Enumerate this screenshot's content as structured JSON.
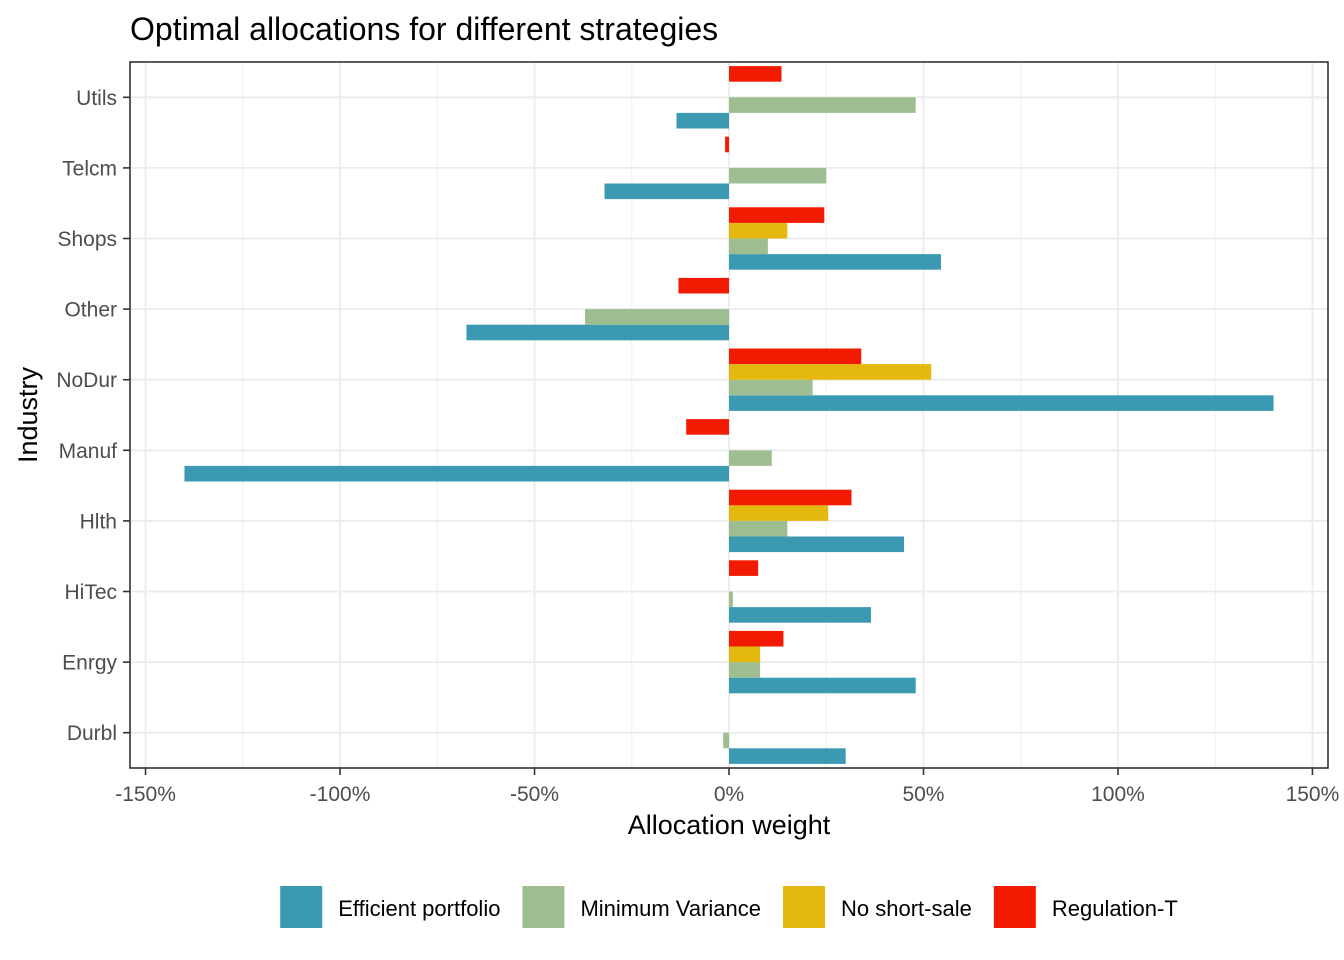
{
  "chart_data": {
    "type": "bar",
    "orientation": "horizontal",
    "title": "Optimal allocations for different strategies",
    "xlabel": "Allocation weight",
    "ylabel": "Industry",
    "xlim": [
      -1.54,
      1.54
    ],
    "xticks": [
      -1.5,
      -1.0,
      -0.5,
      0,
      0.5,
      1.0,
      1.5
    ],
    "xtick_labels": [
      "-150%",
      "-100%",
      "-50%",
      "0%",
      "50%",
      "100%",
      "150%"
    ],
    "categories": [
      "Durbl",
      "Enrgy",
      "HiTec",
      "Hlth",
      "Manuf",
      "NoDur",
      "Other",
      "Shops",
      "Telcm",
      "Utils"
    ],
    "series": [
      {
        "name": "Efficient portfolio",
        "color": "#3B9AB2",
        "values": [
          0.3,
          0.48,
          0.365,
          0.45,
          -1.4,
          1.4,
          -0.675,
          0.545,
          -0.32,
          -0.135
        ]
      },
      {
        "name": "Minimum Variance",
        "color": "#9EBE91",
        "values": [
          -0.015,
          0.08,
          0.01,
          0.15,
          0.11,
          0.215,
          -0.37,
          0.1,
          0.25,
          0.48
        ]
      },
      {
        "name": "No short-sale",
        "color": "#E4B80E",
        "values": [
          0,
          0.08,
          0,
          0.255,
          0,
          0.52,
          0,
          0.15,
          0,
          0
        ]
      },
      {
        "name": "Regulation-T",
        "color": "#F21A00",
        "values": [
          0,
          0.14,
          0.075,
          0.315,
          -0.11,
          0.34,
          -0.13,
          0.245,
          -0.01,
          0.135
        ]
      }
    ],
    "grid": true,
    "legend_position": "bottom"
  }
}
